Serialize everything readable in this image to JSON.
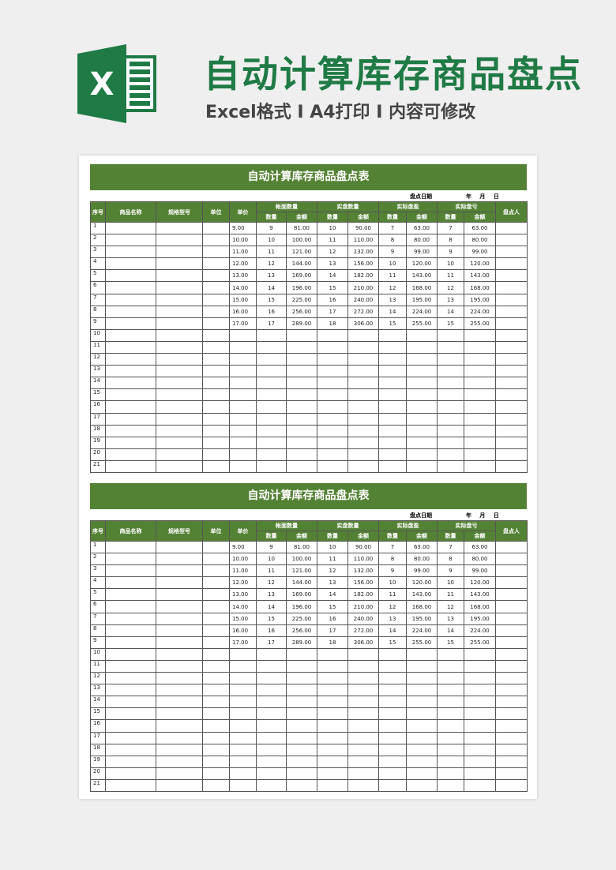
{
  "banner": {
    "title": "自动计算库存商品盘点",
    "subtitle": "Excel格式 I A4打印 I 内容可修改",
    "logo_letter": "X",
    "brand_color": "#1f7a45"
  },
  "sheet": {
    "title": "自动计算库存商品盘点表",
    "date_label": "盘点日期",
    "date_value": "年 月 日",
    "header_color": "#548235",
    "headers": {
      "seq": "序号",
      "name": "商品名称",
      "spec": "规格型号",
      "unit": "单位",
      "price": "单价",
      "book": "帐面数量",
      "actual": "实盘数量",
      "surplus": "实际盘盈",
      "loss": "实际盘亏",
      "counter": "盘点人",
      "qty": "数量",
      "amount": "金额"
    },
    "rows": [
      [
        "1",
        "",
        "",
        "",
        "9.00",
        "9",
        "81.00",
        "10",
        "90.00",
        "7",
        "63.00",
        "7",
        "63.00",
        ""
      ],
      [
        "2",
        "",
        "",
        "",
        "10.00",
        "10",
        "100.00",
        "11",
        "110.00",
        "8",
        "80.00",
        "8",
        "80.00",
        ""
      ],
      [
        "3",
        "",
        "",
        "",
        "11.00",
        "11",
        "121.00",
        "12",
        "132.00",
        "9",
        "99.00",
        "9",
        "99.00",
        ""
      ],
      [
        "4",
        "",
        "",
        "",
        "12.00",
        "12",
        "144.00",
        "13",
        "156.00",
        "10",
        "120.00",
        "10",
        "120.00",
        ""
      ],
      [
        "5",
        "",
        "",
        "",
        "13.00",
        "13",
        "169.00",
        "14",
        "182.00",
        "11",
        "143.00",
        "11",
        "143.00",
        ""
      ],
      [
        "6",
        "",
        "",
        "",
        "14.00",
        "14",
        "196.00",
        "15",
        "210.00",
        "12",
        "168.00",
        "12",
        "168.00",
        ""
      ],
      [
        "7",
        "",
        "",
        "",
        "15.00",
        "15",
        "225.00",
        "16",
        "240.00",
        "13",
        "195.00",
        "13",
        "195.00",
        ""
      ],
      [
        "8",
        "",
        "",
        "",
        "16.00",
        "16",
        "256.00",
        "17",
        "272.00",
        "14",
        "224.00",
        "14",
        "224.00",
        ""
      ],
      [
        "9",
        "",
        "",
        "",
        "17.00",
        "17",
        "289.00",
        "18",
        "306.00",
        "15",
        "255.00",
        "15",
        "255.00",
        ""
      ],
      [
        "10",
        "",
        "",
        "",
        "",
        "",
        "",
        "",
        "",
        "",
        "",
        "",
        "",
        ""
      ],
      [
        "11",
        "",
        "",
        "",
        "",
        "",
        "",
        "",
        "",
        "",
        "",
        "",
        "",
        ""
      ],
      [
        "12",
        "",
        "",
        "",
        "",
        "",
        "",
        "",
        "",
        "",
        "",
        "",
        "",
        ""
      ],
      [
        "13",
        "",
        "",
        "",
        "",
        "",
        "",
        "",
        "",
        "",
        "",
        "",
        "",
        ""
      ],
      [
        "14",
        "",
        "",
        "",
        "",
        "",
        "",
        "",
        "",
        "",
        "",
        "",
        "",
        ""
      ],
      [
        "15",
        "",
        "",
        "",
        "",
        "",
        "",
        "",
        "",
        "",
        "",
        "",
        "",
        ""
      ],
      [
        "16",
        "",
        "",
        "",
        "",
        "",
        "",
        "",
        "",
        "",
        "",
        "",
        "",
        ""
      ],
      [
        "17",
        "",
        "",
        "",
        "",
        "",
        "",
        "",
        "",
        "",
        "",
        "",
        "",
        ""
      ],
      [
        "18",
        "",
        "",
        "",
        "",
        "",
        "",
        "",
        "",
        "",
        "",
        "",
        "",
        ""
      ],
      [
        "19",
        "",
        "",
        "",
        "",
        "",
        "",
        "",
        "",
        "",
        "",
        "",
        "",
        ""
      ],
      [
        "20",
        "",
        "",
        "",
        "",
        "",
        "",
        "",
        "",
        "",
        "",
        "",
        "",
        ""
      ],
      [
        "21",
        "",
        "",
        "",
        "",
        "",
        "",
        "",
        "",
        "",
        "",
        "",
        "",
        ""
      ]
    ]
  }
}
